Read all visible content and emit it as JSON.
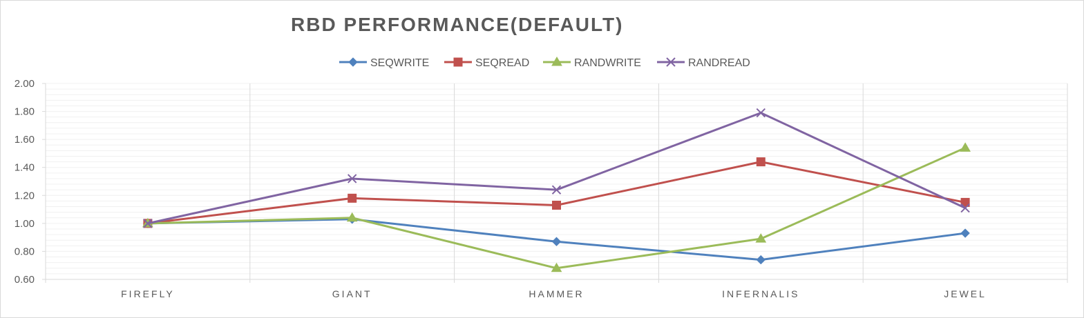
{
  "chart_data": {
    "type": "line",
    "title": "RBD PERFORMANCE(DEFAULT)",
    "xlabel": "",
    "ylabel": "",
    "categories": [
      "FIREFLY",
      "GIANT",
      "HAMMER",
      "INFERNALIS",
      "JEWEL"
    ],
    "ylim": [
      0.6,
      2.0
    ],
    "ytick_step": 0.2,
    "ytick_labels": [
      "0.60",
      "0.80",
      "1.00",
      "1.20",
      "1.40",
      "1.60",
      "1.80",
      "2.00"
    ],
    "grid": {
      "horizontal_minor": true,
      "vertical_category_separators": true
    },
    "legend_position": "top",
    "series": [
      {
        "name": "SEQWRITE",
        "values": [
          1.0,
          1.03,
          0.87,
          0.74,
          0.93
        ],
        "color": "#4f81bd",
        "marker": "diamond"
      },
      {
        "name": "SEQREAD",
        "values": [
          1.0,
          1.18,
          1.13,
          1.44,
          1.15
        ],
        "color": "#c0504d",
        "marker": "square"
      },
      {
        "name": "RANDWRITE",
        "values": [
          1.0,
          1.04,
          0.68,
          0.89,
          1.54
        ],
        "color": "#9bbb59",
        "marker": "triangle"
      },
      {
        "name": "RANDREAD",
        "values": [
          1.0,
          1.32,
          1.24,
          1.79,
          1.11
        ],
        "color": "#8064a2",
        "marker": "x"
      }
    ]
  }
}
